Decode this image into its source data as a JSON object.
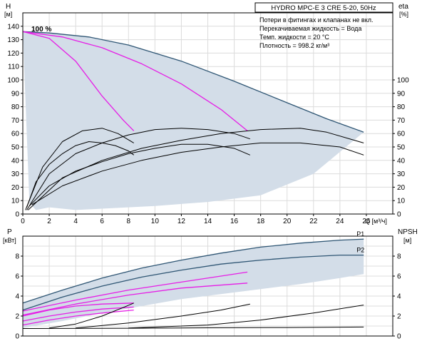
{
  "title_box": "HYDRO MPC-E 3 CRE 5-20, 50Hz",
  "notes": [
    "Потери в фитингах и клапанах не вкл.",
    "Перекачиваемая жидкость = Вода",
    "Темп. жидкости = 20 °C",
    "Плотность = 998.2 кг/м³"
  ],
  "colors": {
    "envelope_fill": "#d3dde8",
    "envelope_edge": "#2f5674",
    "magenta": "#e61ee6",
    "black": "#000000"
  },
  "chart_data": [
    {
      "type": "line",
      "panel": "head",
      "ylabel_top": "H",
      "ylabel_unit": "[м]",
      "ylabel_right_top": "eta",
      "ylabel_right_unit": "[%]",
      "xlabel": "Q [м³/ч]",
      "xlim": [
        0,
        28
      ],
      "ylim": [
        0,
        150
      ],
      "xticks": [
        "0",
        "2",
        "4",
        "6",
        "8",
        "10",
        "12",
        "14",
        "16",
        "18",
        "20",
        "22",
        "24",
        "26"
      ],
      "yticks": [
        "0",
        "10",
        "20",
        "30",
        "40",
        "50",
        "60",
        "70",
        "80",
        "90",
        "100",
        "110",
        "120",
        "130",
        "140"
      ],
      "yticks_right": [
        "0",
        "10",
        "20",
        "30",
        "40",
        "50",
        "60",
        "70",
        "80",
        "90",
        "100"
      ],
      "grid": true,
      "annotation": "100 %",
      "series": [
        {
          "role": "envelope-top",
          "color": "#2f5674",
          "x": [
            0,
            2,
            5,
            8,
            12,
            16,
            20,
            23,
            25.8
          ],
          "y": [
            136,
            135,
            132,
            126,
            114,
            99,
            83,
            71,
            61
          ]
        },
        {
          "role": "envelope-bottom",
          "color": "none",
          "x": [
            0,
            0.5,
            1,
            2,
            4,
            6,
            10,
            14,
            18,
            22,
            25.8
          ],
          "y": [
            136,
            8,
            3,
            5,
            3,
            4,
            6,
            9,
            14,
            30,
            61
          ]
        },
        {
          "role": "magenta-1",
          "color": "#e61ee6",
          "x": [
            0,
            2,
            4,
            6,
            7.6,
            8.4
          ],
          "y": [
            136,
            131,
            114,
            88,
            70,
            62
          ]
        },
        {
          "role": "magenta-2",
          "color": "#e61ee6",
          "x": [
            0,
            3,
            6,
            9,
            12,
            15,
            17
          ],
          "y": [
            136,
            132,
            124,
            112,
            97,
            78,
            62
          ]
        },
        {
          "role": "eff-1",
          "color": "#000000",
          "x": [
            0.2,
            1.5,
            3,
            4.5,
            6,
            7.2,
            8.4
          ],
          "y": [
            3,
            35,
            54,
            62,
            64,
            60,
            53
          ]
        },
        {
          "role": "eff-2",
          "color": "#000000",
          "x": [
            0.3,
            2,
            4,
            6,
            8,
            10,
            12,
            14,
            16,
            17.2
          ],
          "y": [
            3,
            30,
            45,
            53,
            59,
            63,
            64,
            63,
            60,
            56
          ]
        },
        {
          "role": "eff-3",
          "color": "#000000",
          "x": [
            0.4,
            3,
            6,
            9,
            12,
            15,
            18,
            21,
            23,
            25.8
          ],
          "y": [
            3,
            27,
            40,
            49,
            55,
            60,
            63,
            64,
            61,
            53
          ]
        },
        {
          "role": "h-eff-small",
          "color": "#000000",
          "x": [
            0.3,
            1,
            2,
            3,
            4,
            5,
            6,
            7,
            8,
            8.4
          ],
          "y": [
            5,
            24,
            37,
            45,
            51,
            54,
            53,
            51,
            47,
            44
          ]
        },
        {
          "role": "h-eff-mid",
          "color": "#000000",
          "x": [
            0.5,
            2,
            4,
            6,
            8,
            10,
            12,
            14,
            16,
            17.2
          ],
          "y": [
            6,
            21,
            32,
            39,
            45,
            49,
            52,
            52,
            49,
            44
          ]
        },
        {
          "role": "h-eff-big",
          "color": "#000000",
          "x": [
            0.7,
            3,
            6,
            9,
            12,
            15,
            18,
            21,
            24,
            25.8
          ],
          "y": [
            7,
            21,
            32,
            40,
            46,
            50,
            53,
            53,
            50,
            44
          ]
        }
      ]
    },
    {
      "type": "line",
      "panel": "power",
      "ylabel_top": "P",
      "ylabel_unit": "[кВт]",
      "ylabel_right_top": "NPSH",
      "ylabel_right_unit": "[м]",
      "xlim": [
        0,
        28
      ],
      "ylim": [
        0,
        10
      ],
      "yticks": [
        "0",
        "2",
        "4",
        "6",
        "8"
      ],
      "yticks_right": [
        "0",
        "2",
        "4",
        "6",
        "8"
      ],
      "grid": true,
      "series": [
        {
          "name": "P1",
          "color": "#2f5674",
          "x": [
            0,
            3,
            6,
            9,
            12,
            15,
            18,
            21,
            24,
            25.8
          ],
          "y": [
            3.3,
            4.6,
            5.8,
            6.8,
            7.6,
            8.3,
            8.9,
            9.3,
            9.6,
            9.7
          ]
        },
        {
          "name": "P2",
          "color": "#2f5674",
          "x": [
            0,
            3,
            6,
            9,
            12,
            15,
            18,
            21,
            24,
            25.8
          ],
          "y": [
            2.6,
            3.9,
            5.0,
            5.9,
            6.6,
            7.2,
            7.6,
            7.9,
            8.1,
            8.1
          ]
        },
        {
          "role": "envelope-bottom",
          "color": "none",
          "x": [
            0,
            3,
            6,
            9,
            12,
            15,
            18,
            21,
            24,
            25.8
          ],
          "y": [
            0.8,
            1.5,
            2.3,
            3.0,
            3.7,
            4.2,
            4.7,
            5.2,
            5.8,
            6.2
          ]
        },
        {
          "role": "magenta-a",
          "color": "#e61ee6",
          "x": [
            0,
            4,
            8,
            12,
            17
          ],
          "y": [
            2.5,
            3.6,
            4.6,
            5.4,
            6.4
          ]
        },
        {
          "role": "magenta-b",
          "color": "#e61ee6",
          "x": [
            0,
            4,
            8,
            12,
            17
          ],
          "y": [
            2.1,
            3.2,
            4.1,
            4.8,
            5.3
          ]
        },
        {
          "role": "magenta-c",
          "color": "#e61ee6",
          "x": [
            0,
            2,
            4,
            6,
            8.4
          ],
          "y": [
            2.0,
            2.6,
            3.0,
            3.2,
            3.3
          ]
        },
        {
          "role": "magenta-d",
          "color": "#e61ee6",
          "x": [
            0,
            2,
            4,
            6,
            8.4
          ],
          "y": [
            1.5,
            2.0,
            2.4,
            2.7,
            2.9
          ]
        },
        {
          "role": "magenta-e",
          "color": "#e61ee6",
          "x": [
            0,
            2,
            4,
            6,
            8.4
          ],
          "y": [
            1.1,
            1.6,
            2.0,
            2.3,
            2.6
          ]
        },
        {
          "role": "npsh-1",
          "color": "#000000",
          "x": [
            2,
            4,
            6,
            7.5,
            8.4
          ],
          "y": [
            0.8,
            1.2,
            2.0,
            2.8,
            3.3
          ]
        },
        {
          "role": "npsh-2",
          "color": "#000000",
          "x": [
            4,
            8,
            12,
            15,
            17.2
          ],
          "y": [
            0.8,
            1.3,
            2.0,
            2.6,
            3.2
          ]
        },
        {
          "role": "npsh-3",
          "color": "#000000",
          "x": [
            8,
            14,
            18,
            22,
            25.8
          ],
          "y": [
            0.8,
            1.1,
            1.6,
            2.3,
            3.1
          ]
        },
        {
          "role": "baseline",
          "color": "#000000",
          "x": [
            0,
            8,
            14,
            20,
            25.8
          ],
          "y": [
            0.75,
            0.78,
            0.82,
            0.85,
            0.9
          ]
        }
      ]
    }
  ]
}
